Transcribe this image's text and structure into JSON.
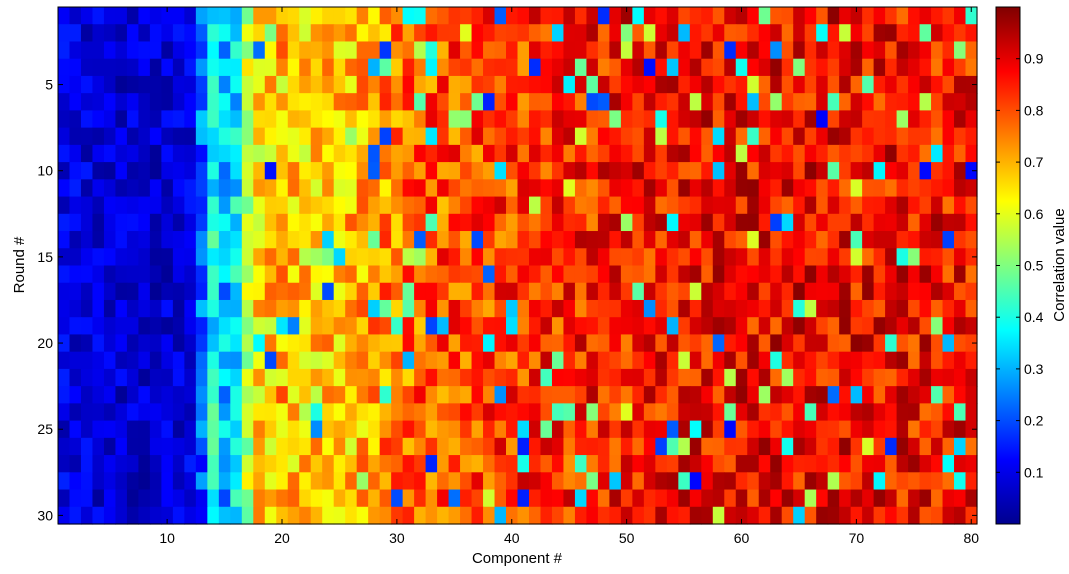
{
  "chart_data": {
    "type": "heatmap",
    "xlabel": "Component #",
    "ylabel": "Round #",
    "colorbar_label": "Correlation value",
    "x_ticks": [
      "10",
      "20",
      "30",
      "40",
      "50",
      "60",
      "70",
      "80"
    ],
    "y_ticks": [
      "5",
      "10",
      "15",
      "20",
      "25",
      "30"
    ],
    "colorbar_ticks": [
      "0.1",
      "0.2",
      "0.3",
      "0.4",
      "0.5",
      "0.6",
      "0.7",
      "0.8",
      "0.9"
    ],
    "x_range": [
      1,
      80
    ],
    "y_range": [
      1,
      30
    ],
    "color_range": [
      0,
      1
    ],
    "colormap": "jet",
    "grid": false,
    "description_of_values": "Per-round correlation per component: ~0.05-0.2 for components 1-12, rising steeply to ~0.5-0.75 around components 14-35, and ~0.75-0.95 for components 40-80 with scattered low outliers.",
    "column_profile": {
      "components": [
        1,
        5,
        10,
        12,
        13,
        14,
        15,
        16,
        17,
        18,
        20,
        22,
        25,
        28,
        30,
        32,
        35,
        40,
        45,
        50,
        55,
        60,
        65,
        70,
        75,
        80
      ],
      "mean_values": [
        0.1,
        0.08,
        0.08,
        0.1,
        0.22,
        0.38,
        0.3,
        0.35,
        0.55,
        0.65,
        0.7,
        0.66,
        0.68,
        0.72,
        0.76,
        0.78,
        0.8,
        0.82,
        0.84,
        0.86,
        0.87,
        0.88,
        0.88,
        0.88,
        0.87,
        0.86
      ]
    }
  }
}
